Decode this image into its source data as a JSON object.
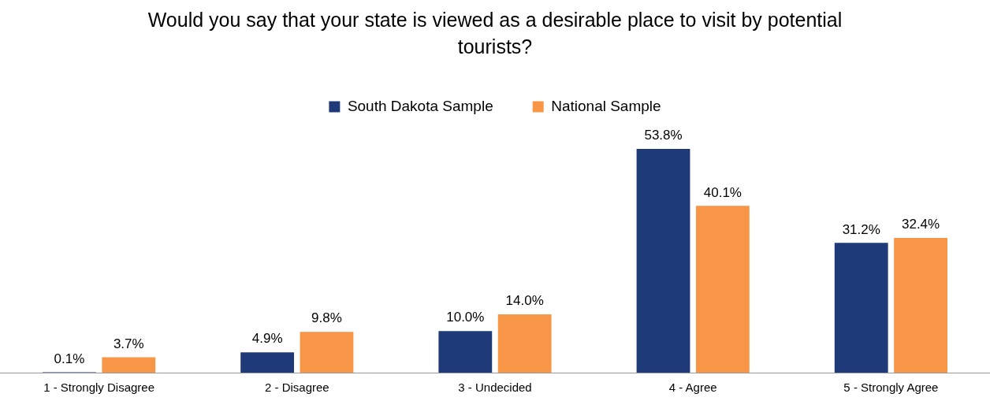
{
  "chart_data": {
    "type": "bar",
    "title": "Would you say that your state is viewed as a desirable place to visit by potential tourists?",
    "categories": [
      "1 - Strongly Disagree",
      "2 - Disagree",
      "3 - Undecided",
      "4 - Agree",
      "5 - Strongly Agree"
    ],
    "series": [
      {
        "name": "South Dakota Sample",
        "color": "#1f3a78",
        "values": [
          0.1,
          4.9,
          10.0,
          53.8,
          31.2
        ],
        "value_labels": [
          "0.1%",
          "4.9%",
          "10.0%",
          "53.8%",
          "31.2%"
        ]
      },
      {
        "name": "National Sample",
        "color": "#f79646",
        "values": [
          3.7,
          9.8,
          14.0,
          40.1,
          32.4
        ],
        "value_labels": [
          "3.7%",
          "9.8%",
          "14.0%",
          "40.1%",
          "32.4%"
        ]
      }
    ],
    "legend": "top",
    "grid": false
  }
}
